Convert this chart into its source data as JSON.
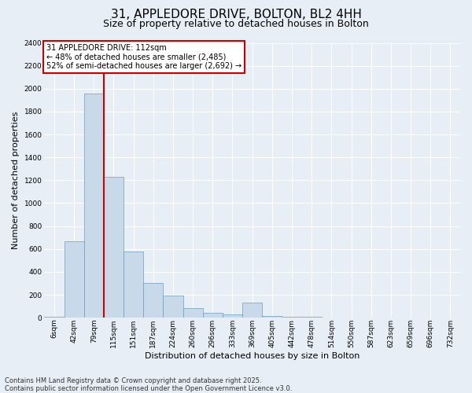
{
  "title": "31, APPLEDORE DRIVE, BOLTON, BL2 4HH",
  "subtitle": "Size of property relative to detached houses in Bolton",
  "xlabel": "Distribution of detached houses by size in Bolton",
  "ylabel": "Number of detached properties",
  "bar_color": "#c8d9ea",
  "bar_edge_color": "#6a9fc0",
  "vline_color": "#cc0000",
  "categories": [
    "6sqm",
    "42sqm",
    "79sqm",
    "115sqm",
    "151sqm",
    "187sqm",
    "224sqm",
    "260sqm",
    "296sqm",
    "333sqm",
    "369sqm",
    "405sqm",
    "442sqm",
    "478sqm",
    "514sqm",
    "550sqm",
    "587sqm",
    "623sqm",
    "659sqm",
    "696sqm",
    "732sqm"
  ],
  "values": [
    5,
    670,
    1960,
    1230,
    575,
    300,
    195,
    85,
    45,
    30,
    130,
    15,
    10,
    5,
    2,
    1,
    0,
    0,
    0,
    0,
    0
  ],
  "ylim": [
    0,
    2400
  ],
  "yticks": [
    0,
    200,
    400,
    600,
    800,
    1000,
    1200,
    1400,
    1600,
    1800,
    2000,
    2200,
    2400
  ],
  "vline_bin_index": 2,
  "annotation_line1": "31 APPLEDORE DRIVE: 112sqm",
  "annotation_line2": "← 48% of detached houses are smaller (2,485)",
  "annotation_line3": "52% of semi-detached houses are larger (2,692) →",
  "annotation_box_facecolor": "#ffffff",
  "annotation_border_color": "#cc0000",
  "footer_text": "Contains HM Land Registry data © Crown copyright and database right 2025.\nContains public sector information licensed under the Open Government Licence v3.0.",
  "background_color": "#e8eef5",
  "grid_color": "#ffffff",
  "title_fontsize": 11,
  "subtitle_fontsize": 9,
  "tick_fontsize": 6.5,
  "ylabel_fontsize": 8,
  "xlabel_fontsize": 8,
  "annotation_fontsize": 7,
  "footer_fontsize": 6
}
